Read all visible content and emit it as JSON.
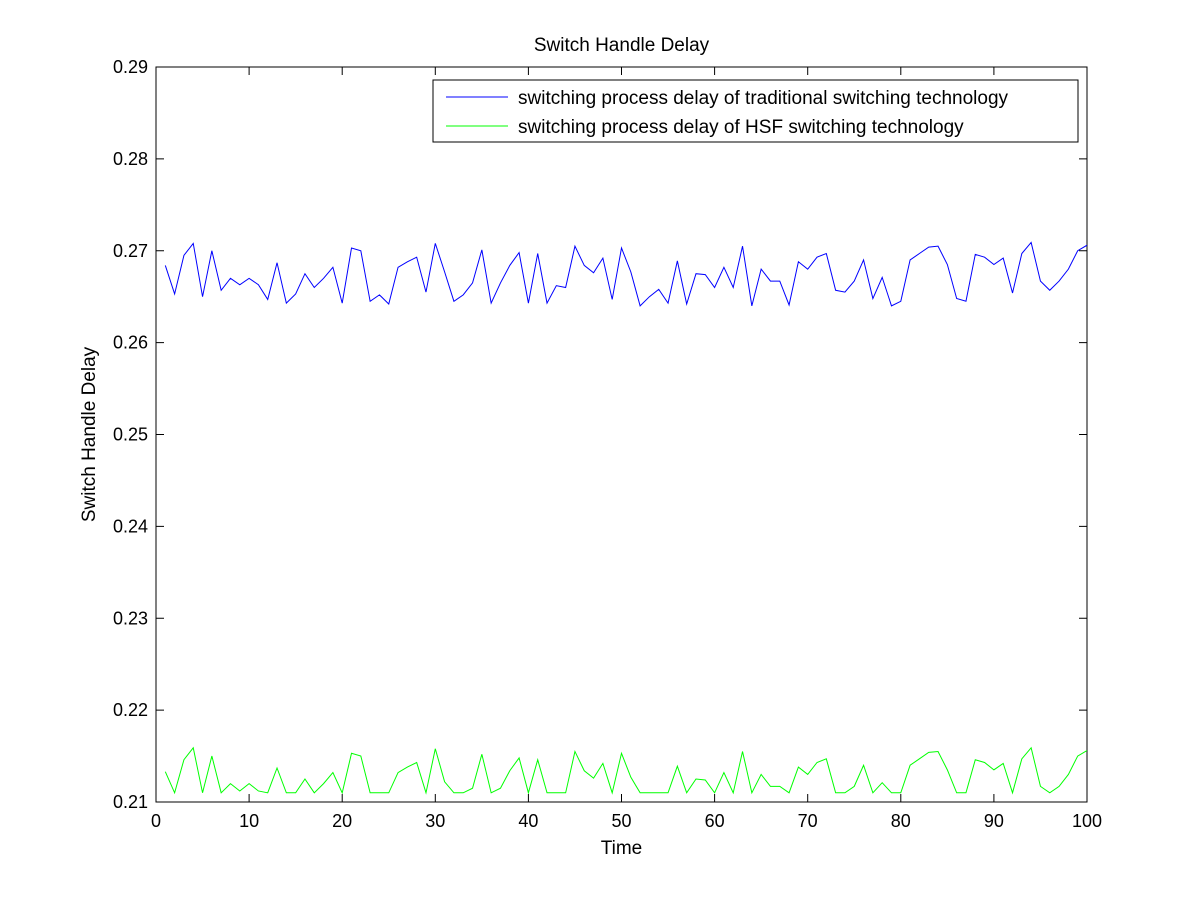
{
  "chart_data": {
    "type": "line",
    "title": "Switch Handle Delay",
    "xlabel": "Time",
    "ylabel": "Switch Handle Delay",
    "xlim": [
      0,
      100
    ],
    "ylim": [
      0.21,
      0.29
    ],
    "xticks": [
      0,
      10,
      20,
      30,
      40,
      50,
      60,
      70,
      80,
      90,
      100
    ],
    "yticks": [
      "0.21",
      "0.22",
      "0.23",
      "0.24",
      "0.25",
      "0.26",
      "0.27",
      "0.28",
      "0.29"
    ],
    "grid": false,
    "legend_position": "top-right",
    "x": [
      1,
      2,
      3,
      4,
      5,
      6,
      7,
      8,
      9,
      10,
      11,
      12,
      13,
      14,
      15,
      16,
      17,
      18,
      19,
      20,
      21,
      22,
      23,
      24,
      25,
      26,
      27,
      28,
      29,
      30,
      31,
      32,
      33,
      34,
      35,
      36,
      37,
      38,
      39,
      40,
      41,
      42,
      43,
      44,
      45,
      46,
      47,
      48,
      49,
      50,
      51,
      52,
      53,
      54,
      55,
      56,
      57,
      58,
      59,
      60,
      61,
      62,
      63,
      64,
      65,
      66,
      67,
      68,
      69,
      70,
      71,
      72,
      73,
      74,
      75,
      76,
      77,
      78,
      79,
      80,
      81,
      82,
      83,
      84,
      85,
      86,
      87,
      88,
      89,
      90,
      91,
      92,
      93,
      94,
      95,
      96,
      97,
      98,
      99,
      100
    ],
    "series": [
      {
        "name": "switching process delay of traditional switching technology",
        "color": "#0000ff",
        "values": [
          0.2684,
          0.2653,
          0.2695,
          0.2708,
          0.265,
          0.27,
          0.2657,
          0.267,
          0.2663,
          0.267,
          0.2663,
          0.2647,
          0.2687,
          0.2643,
          0.2653,
          0.2675,
          0.266,
          0.267,
          0.2682,
          0.2643,
          0.2703,
          0.27,
          0.2645,
          0.2652,
          0.2642,
          0.2682,
          0.2688,
          0.2693,
          0.2655,
          0.2708,
          0.2677,
          0.2645,
          0.2652,
          0.2665,
          0.2701,
          0.2643,
          0.2665,
          0.2684,
          0.2698,
          0.2643,
          0.2697,
          0.2643,
          0.2662,
          0.266,
          0.2705,
          0.2684,
          0.2676,
          0.2692,
          0.2647,
          0.2703,
          0.2677,
          0.264,
          0.265,
          0.2658,
          0.2643,
          0.2689,
          0.2642,
          0.2675,
          0.2674,
          0.266,
          0.2682,
          0.266,
          0.2705,
          0.264,
          0.268,
          0.2667,
          0.2667,
          0.2641,
          0.2688,
          0.268,
          0.2693,
          0.2697,
          0.2657,
          0.2655,
          0.2667,
          0.269,
          0.2648,
          0.2671,
          0.264,
          0.2645,
          0.269,
          0.2697,
          0.2704,
          0.2705,
          0.2685,
          0.2648,
          0.2645,
          0.2696,
          0.2693,
          0.2685,
          0.2692,
          0.2654,
          0.2697,
          0.2709,
          0.2667,
          0.2657,
          0.2667,
          0.268,
          0.27,
          0.2706
        ]
      },
      {
        "name": "switching process delay of HSF switching technology",
        "color": "#00ff00",
        "values": [
          0.2133,
          0.211,
          0.2146,
          0.2159,
          0.211,
          0.215,
          0.211,
          0.212,
          0.2112,
          0.212,
          0.2112,
          0.211,
          0.2137,
          0.211,
          0.211,
          0.2125,
          0.211,
          0.212,
          0.2132,
          0.211,
          0.2153,
          0.215,
          0.211,
          0.211,
          0.211,
          0.2132,
          0.2138,
          0.2143,
          0.211,
          0.2158,
          0.2122,
          0.211,
          0.211,
          0.2115,
          0.2152,
          0.211,
          0.2115,
          0.2134,
          0.2148,
          0.211,
          0.2146,
          0.211,
          0.211,
          0.211,
          0.2155,
          0.2134,
          0.2126,
          0.2142,
          0.211,
          0.2153,
          0.2127,
          0.211,
          0.211,
          0.211,
          0.211,
          0.2139,
          0.211,
          0.2125,
          0.2124,
          0.211,
          0.2132,
          0.211,
          0.2155,
          0.211,
          0.213,
          0.2117,
          0.2117,
          0.211,
          0.2138,
          0.213,
          0.2143,
          0.2147,
          0.211,
          0.211,
          0.2117,
          0.214,
          0.211,
          0.2121,
          0.211,
          0.211,
          0.214,
          0.2147,
          0.2154,
          0.2155,
          0.2135,
          0.211,
          0.211,
          0.2146,
          0.2143,
          0.2135,
          0.2142,
          0.211,
          0.2147,
          0.2159,
          0.2117,
          0.211,
          0.2117,
          0.213,
          0.215,
          0.2156
        ]
      }
    ]
  }
}
